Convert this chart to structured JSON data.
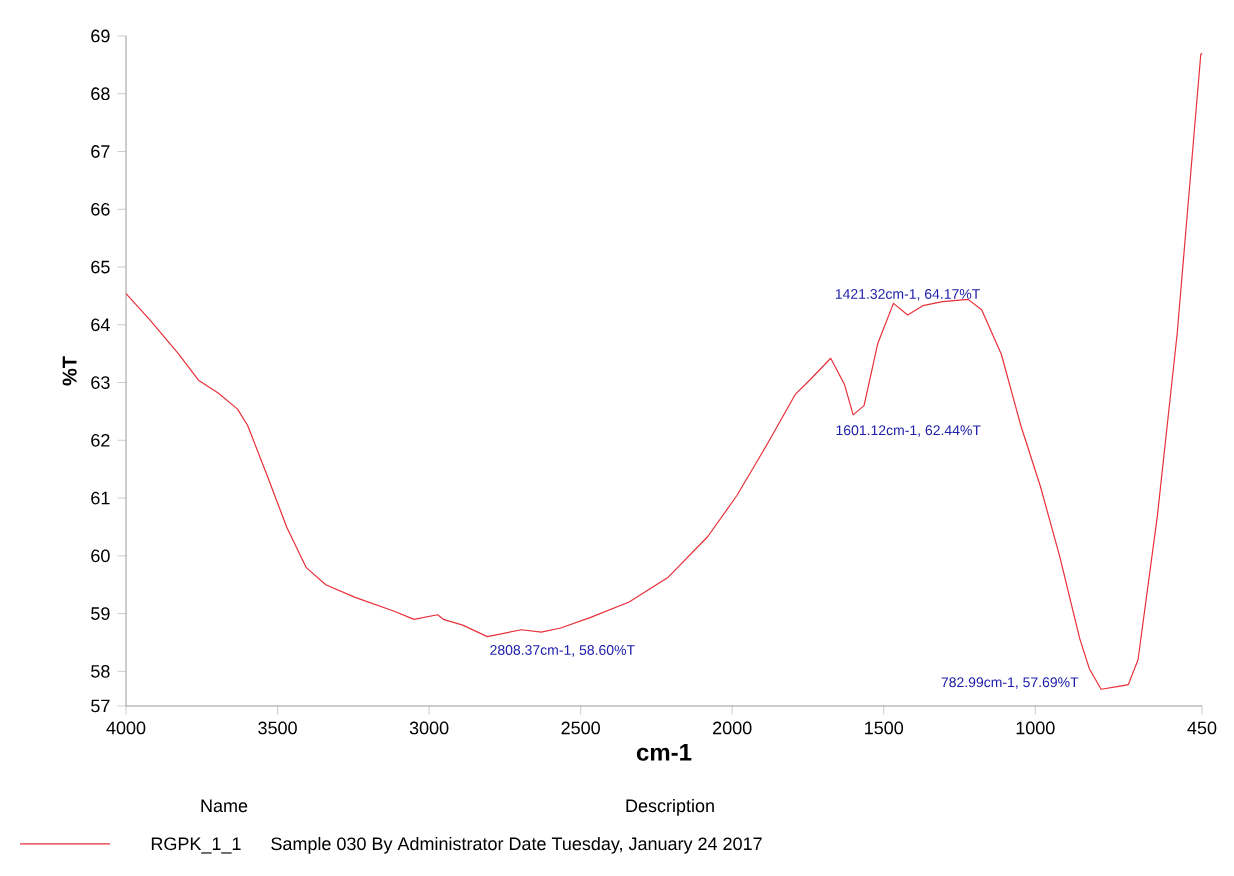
{
  "chart_data": {
    "type": "line",
    "xlabel": "cm-1",
    "ylabel": "%T",
    "legend_title": "Name",
    "x": [
      4000,
      3922,
      3826,
      3761,
      3696,
      3632,
      3599,
      3535,
      3470,
      3406,
      3341,
      3244,
      3115,
      3050,
      2972,
      2953,
      2889,
      2808,
      2695,
      2630,
      2566,
      2469,
      2340,
      2211,
      2081,
      1985,
      1888,
      1791,
      1739,
      1675,
      1629,
      1601,
      1565,
      1520,
      1468,
      1421,
      1371,
      1306,
      1222,
      1177,
      1112,
      1048,
      983,
      919,
      854,
      822,
      783,
      725,
      693,
      661,
      597,
      532,
      454,
      450
    ],
    "series": [
      {
        "name": "RGPK_1_1",
        "color": "#e8303a",
        "values": [
          64.54,
          64.09,
          63.49,
          63.04,
          62.82,
          62.54,
          62.26,
          61.4,
          60.5,
          59.8,
          59.5,
          59.28,
          59.04,
          58.9,
          58.98,
          58.9,
          58.8,
          58.6,
          58.72,
          58.68,
          58.75,
          58.93,
          59.2,
          59.63,
          60.33,
          61.04,
          61.9,
          62.8,
          63.07,
          63.42,
          62.96,
          62.44,
          62.6,
          63.67,
          64.37,
          64.17,
          64.33,
          64.4,
          64.44,
          64.26,
          63.49,
          62.26,
          61.2,
          59.98,
          58.58,
          58.05,
          57.69,
          57.74,
          57.77,
          58.2,
          60.7,
          63.84,
          68.68,
          68.7
        ]
      }
    ],
    "xlim": [
      4000,
      450
    ],
    "xticks": [
      4000,
      3500,
      3000,
      2500,
      2000,
      1500,
      1000,
      450
    ],
    "ylim": [
      57.4,
      69
    ],
    "yticks": [
      {
        "value": 57.4,
        "label": "57"
      },
      58,
      59,
      60,
      61,
      62,
      63,
      64,
      65,
      66,
      67,
      68,
      69
    ],
    "grid": false,
    "legend": "bottom left",
    "marker": "none",
    "line_style": "solid",
    "annotations": [
      {
        "text": "2808.37cm-1, 58.60%T",
        "x": 2808.37,
        "y": 58.6
      },
      {
        "text": "1601.12cm-1, 62.44%T",
        "x": 1601.12,
        "y": 62.44
      },
      {
        "text": "1421.32cm-1, 64.17%T",
        "x": 1421.32,
        "y": 64.17
      },
      {
        "text": "782.99cm-1, 57.69%T",
        "x": 782.99,
        "y": 57.69
      },
      "Description",
      "Sample 030 By Administrator Date Tuesday, January 24 2017"
    ]
  }
}
